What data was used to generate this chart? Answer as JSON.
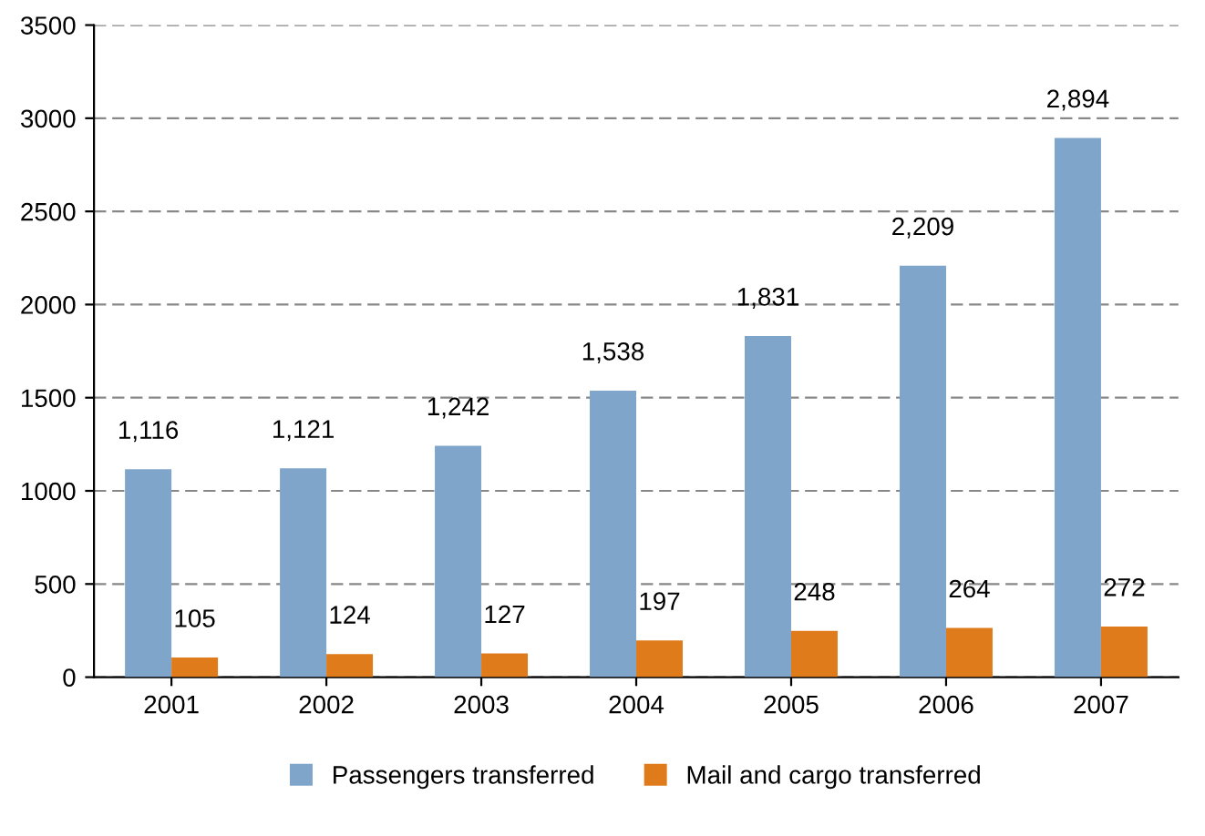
{
  "chart_data": {
    "type": "bar",
    "categories": [
      "2001",
      "2002",
      "2003",
      "2004",
      "2005",
      "2006",
      "2007"
    ],
    "series": [
      {
        "name": "Passengers transferred",
        "color": "#7fa5cb",
        "values": [
          1116,
          1121,
          1242,
          1538,
          1831,
          2209,
          2894
        ],
        "value_labels": [
          "1,116",
          "1,121",
          "1,242",
          "1,538",
          "1,831",
          "2,209",
          "2,894"
        ]
      },
      {
        "name": "Mail and cargo transferred",
        "color": "#e07b1c",
        "values": [
          105,
          124,
          127,
          197,
          248,
          264,
          272
        ],
        "value_labels": [
          "105",
          "124",
          "127",
          "197",
          "248",
          "264",
          "272"
        ]
      }
    ],
    "ylim": [
      0,
      3500
    ],
    "yticks": [
      0,
      500,
      1000,
      1500,
      2000,
      2500,
      3000,
      3500
    ],
    "grid": "y",
    "legend": "bottom"
  }
}
